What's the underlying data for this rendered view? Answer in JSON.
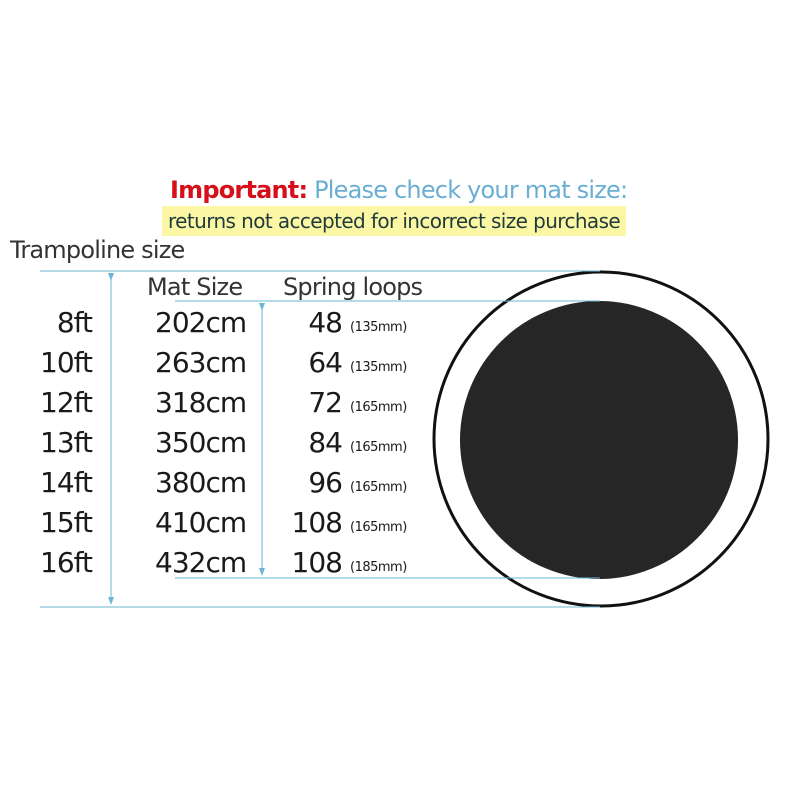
{
  "notice": {
    "important_label": "Important:",
    "message": "Please check your mat size:",
    "warning": "returns not accepted for incorrect size purchase"
  },
  "headers": {
    "trampoline_size": "Trampoline size",
    "mat_size": "Mat Size",
    "spring_loops": "Spring loops"
  },
  "rows": [
    {
      "trampoline": "8ft",
      "mat": "202cm",
      "springs": "48",
      "spring_length": "(135mm)"
    },
    {
      "trampoline": "10ft",
      "mat": "263cm",
      "springs": "64",
      "spring_length": "(135mm)"
    },
    {
      "trampoline": "12ft",
      "mat": "318cm",
      "springs": "72",
      "spring_length": "(165mm)"
    },
    {
      "trampoline": "13ft",
      "mat": "350cm",
      "springs": "84",
      "spring_length": "(165mm)"
    },
    {
      "trampoline": "14ft",
      "mat": "380cm",
      "springs": "96",
      "spring_length": "(165mm)"
    },
    {
      "trampoline": "15ft",
      "mat": "410cm",
      "springs": "108",
      "spring_length": "(165mm)"
    },
    {
      "trampoline": "16ft",
      "mat": "432cm",
      "springs": "108",
      "spring_length": "(185mm)"
    }
  ],
  "colors": {
    "important": "#d6101a",
    "message": "#6aaed3",
    "highlight": "#fbf7a4",
    "dimension_lines": "#6bb7d4",
    "mat": "#262626"
  }
}
